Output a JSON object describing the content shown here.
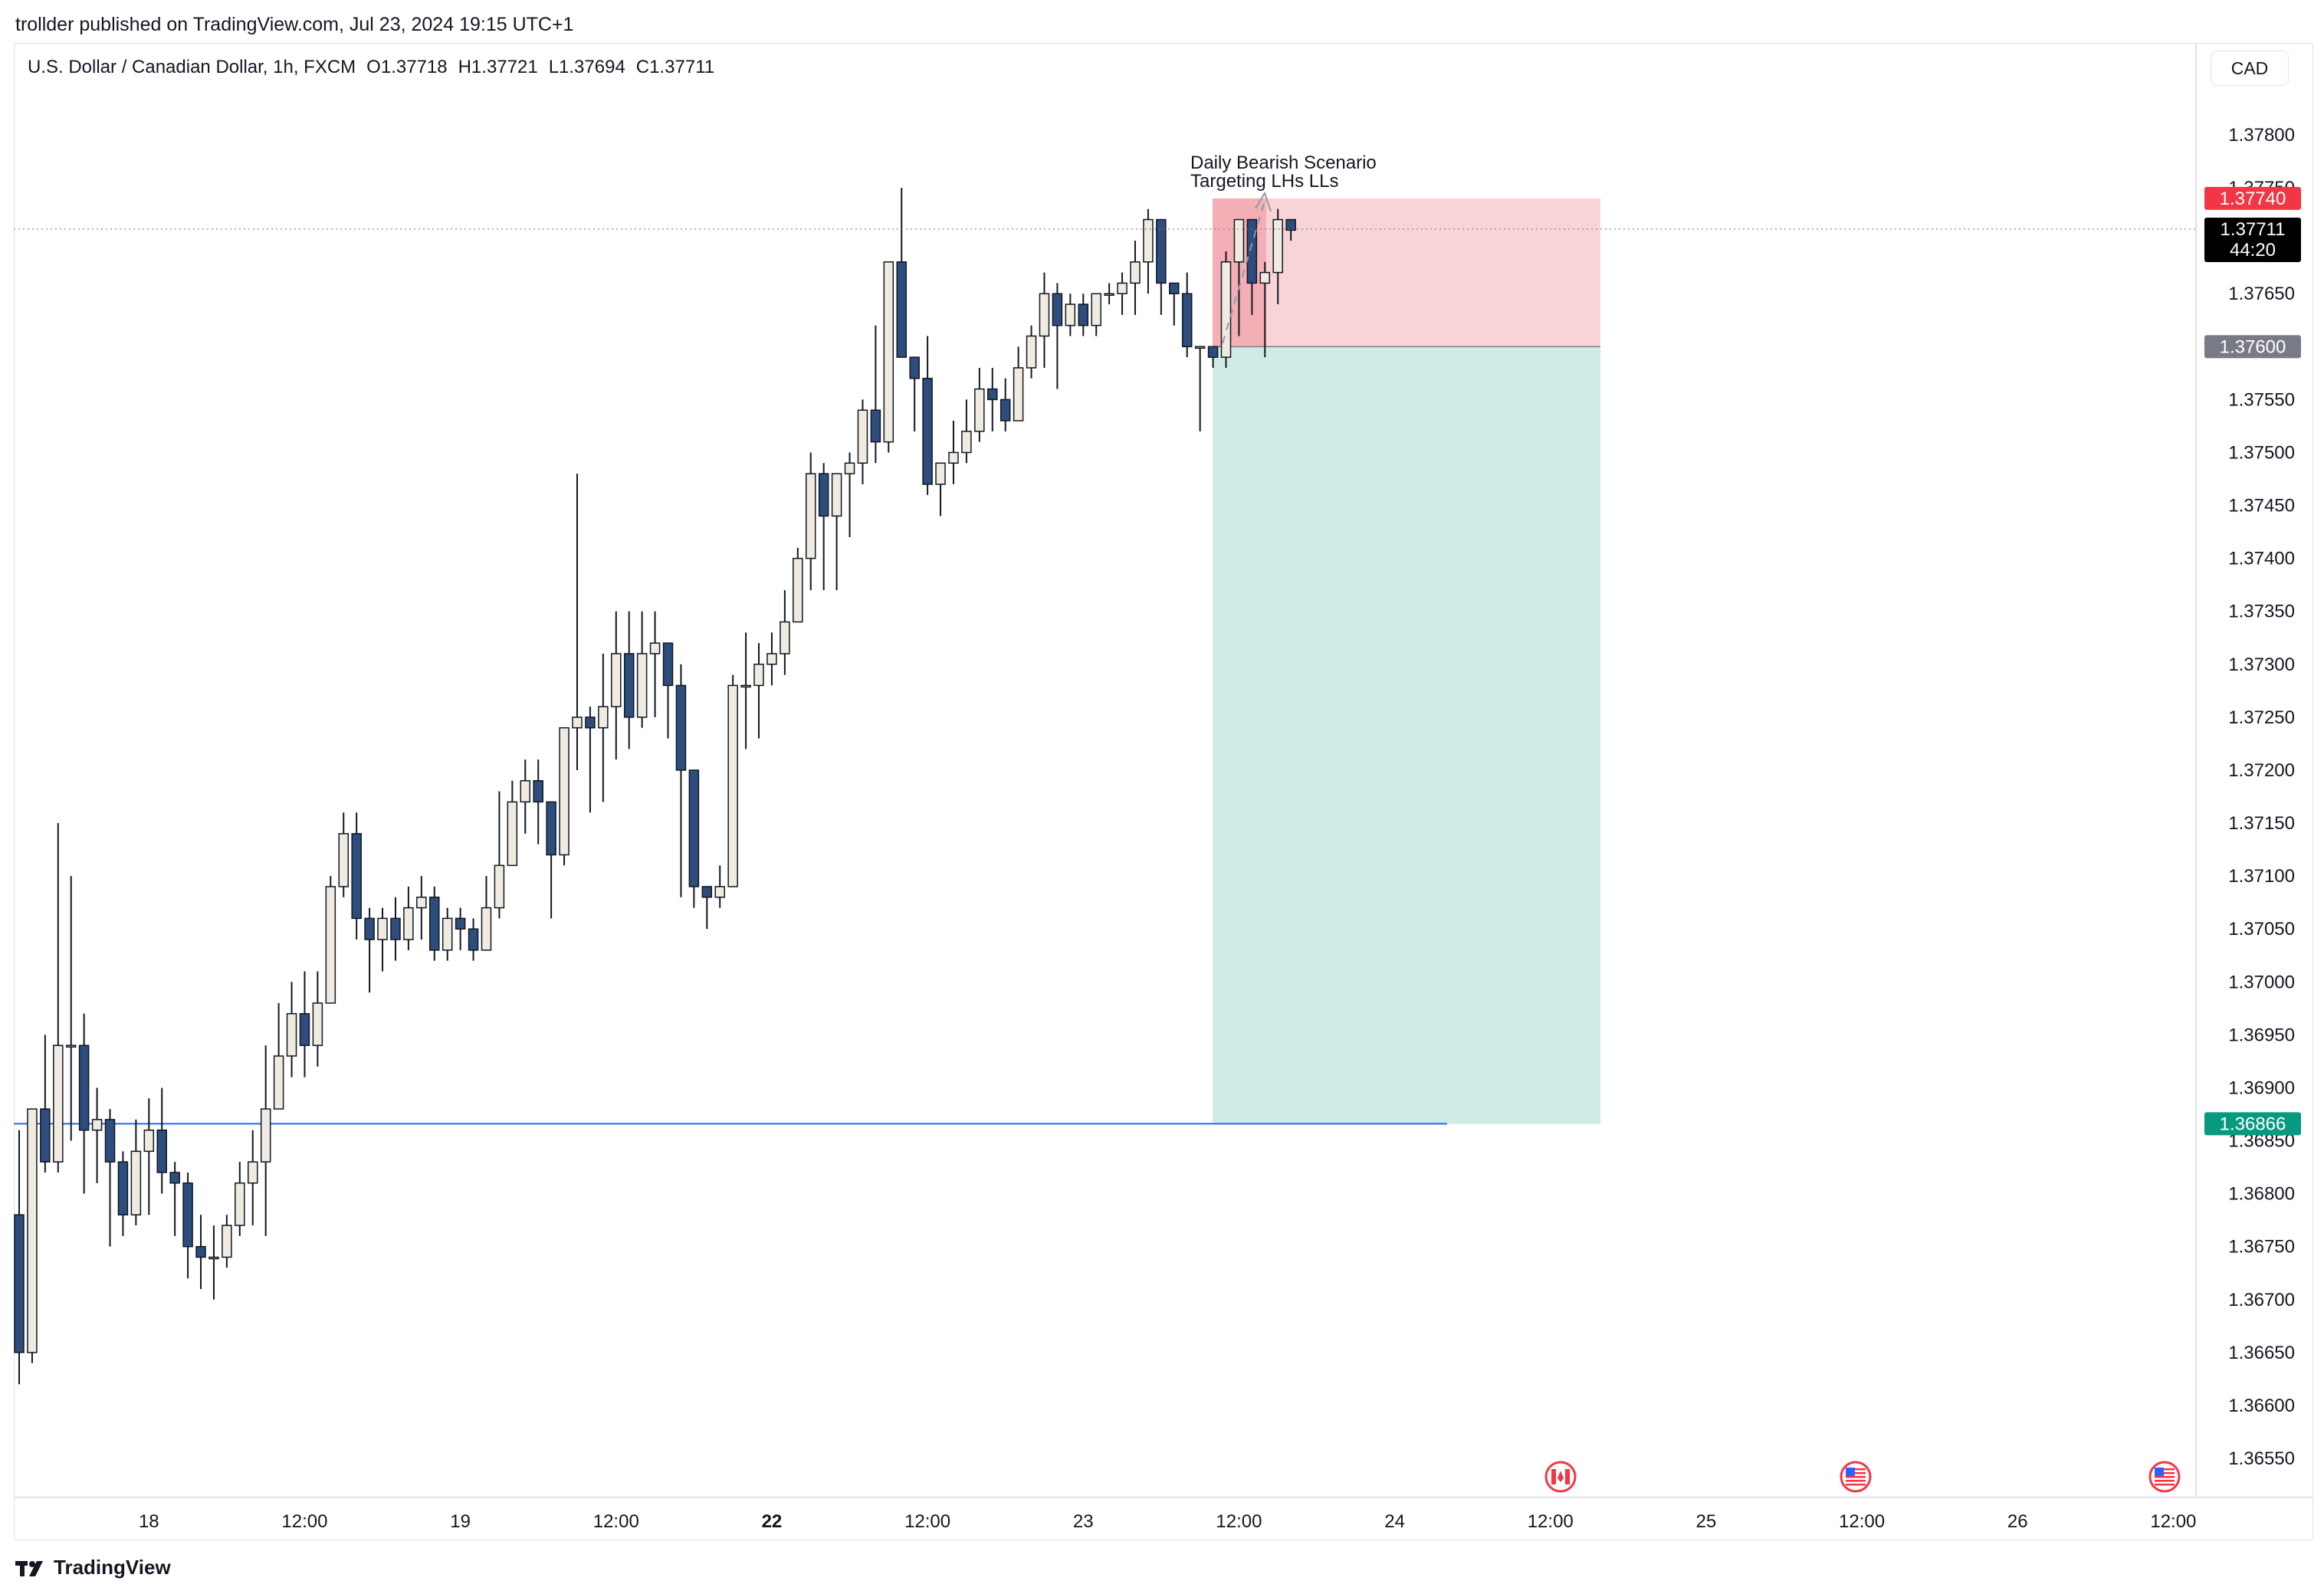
{
  "caption": "trollder published on TradingView.com, Jul 23, 2024 19:15 UTC+1",
  "header": {
    "symbol": "U.S. Dollar / Canadian Dollar, 1h, FXCM",
    "open": "O1.37718",
    "high": "H1.37721",
    "low": "L1.37694",
    "close": "C1.37711"
  },
  "currency_button": "CAD",
  "brand": "TradingView",
  "colors": {
    "up_body": "#efebe1",
    "down_body": "#2d4d7c",
    "wick": "#131722",
    "stop_zone": "#f7c5ca",
    "stop_zone_strong": "#f2a0a8",
    "target_zone": "#c6e8e0",
    "support_line": "#2962ff",
    "stop_tag": "#f23645",
    "entry_tag": "#787b86",
    "target_tag": "#089981",
    "last_tag": "#000000"
  },
  "chart_data": {
    "type": "candlestick",
    "instrument": "USD/CAD",
    "timeframe": "1h",
    "ylim": [
      1.3651,
      1.3781
    ],
    "y_ticks": [
      "1.37800",
      "1.37750",
      "1.37650",
      "1.37550",
      "1.37500",
      "1.37450",
      "1.37400",
      "1.37350",
      "1.37300",
      "1.37250",
      "1.37200",
      "1.37150",
      "1.37100",
      "1.37050",
      "1.37000",
      "1.36950",
      "1.36900",
      "1.36850",
      "1.36800",
      "1.36750",
      "1.36700",
      "1.36650",
      "1.36600",
      "1.36550"
    ],
    "x_ticks": [
      {
        "label": "18",
        "bar": 10,
        "bold": false
      },
      {
        "label": "12:00",
        "bar": 22,
        "bold": false
      },
      {
        "label": "19",
        "bar": 34,
        "bold": false
      },
      {
        "label": "12:00",
        "bar": 46,
        "bold": false
      },
      {
        "label": "22",
        "bar": 58,
        "bold": true
      },
      {
        "label": "12:00",
        "bar": 70,
        "bold": false
      },
      {
        "label": "23",
        "bar": 82,
        "bold": false
      },
      {
        "label": "12:00",
        "bar": 94,
        "bold": false
      },
      {
        "label": "24",
        "bar": 106,
        "bold": false
      },
      {
        "label": "12:00",
        "bar": 118,
        "bold": false
      },
      {
        "label": "25",
        "bar": 130,
        "bold": false
      },
      {
        "label": "12:00",
        "bar": 142,
        "bold": false
      },
      {
        "label": "26",
        "bar": 154,
        "bold": false
      },
      {
        "label": "12:00",
        "bar": 166,
        "bold": false
      }
    ],
    "candles": [
      [
        1.3678,
        1.3665,
        1.3662,
        1.3686
      ],
      [
        1.3665,
        1.3688,
        1.3664,
        1.3688
      ],
      [
        1.3688,
        1.3683,
        1.3682,
        1.3695
      ],
      [
        1.3683,
        1.3694,
        1.3682,
        1.3715
      ],
      [
        1.3694,
        1.3694,
        1.3685,
        1.371
      ],
      [
        1.3694,
        1.3686,
        1.368,
        1.3697
      ],
      [
        1.3686,
        1.3687,
        1.3681,
        1.369
      ],
      [
        1.3687,
        1.3683,
        1.3675,
        1.3688
      ],
      [
        1.3683,
        1.3678,
        1.3676,
        1.3684
      ],
      [
        1.3678,
        1.3684,
        1.3677,
        1.3687
      ],
      [
        1.3684,
        1.3686,
        1.3678,
        1.3689
      ],
      [
        1.3686,
        1.3682,
        1.368,
        1.369
      ],
      [
        1.3682,
        1.3681,
        1.3676,
        1.3683
      ],
      [
        1.3681,
        1.3675,
        1.3672,
        1.3682
      ],
      [
        1.3675,
        1.3674,
        1.3671,
        1.3678
      ],
      [
        1.3674,
        1.3674,
        1.367,
        1.3677
      ],
      [
        1.3674,
        1.3677,
        1.3673,
        1.3678
      ],
      [
        1.3677,
        1.3681,
        1.3676,
        1.3683
      ],
      [
        1.3681,
        1.3683,
        1.3677,
        1.3686
      ],
      [
        1.3683,
        1.3688,
        1.3676,
        1.3694
      ],
      [
        1.3688,
        1.3693,
        1.3688,
        1.3698
      ],
      [
        1.3693,
        1.3697,
        1.3691,
        1.37
      ],
      [
        1.3697,
        1.3694,
        1.3691,
        1.3701
      ],
      [
        1.3694,
        1.3698,
        1.3692,
        1.3701
      ],
      [
        1.3698,
        1.3709,
        1.3698,
        1.371
      ],
      [
        1.3709,
        1.3714,
        1.3708,
        1.3716
      ],
      [
        1.3714,
        1.3706,
        1.3704,
        1.3716
      ],
      [
        1.3706,
        1.3704,
        1.3699,
        1.3707
      ],
      [
        1.3704,
        1.3706,
        1.3701,
        1.3707
      ],
      [
        1.3706,
        1.3704,
        1.3702,
        1.3708
      ],
      [
        1.3704,
        1.3707,
        1.3703,
        1.3709
      ],
      [
        1.3707,
        1.3708,
        1.3704,
        1.371
      ],
      [
        1.3708,
        1.3703,
        1.3702,
        1.3709
      ],
      [
        1.3703,
        1.3706,
        1.3702,
        1.3707
      ],
      [
        1.3706,
        1.3705,
        1.3703,
        1.3707
      ],
      [
        1.3705,
        1.3703,
        1.3702,
        1.3706
      ],
      [
        1.3703,
        1.3707,
        1.3703,
        1.371
      ],
      [
        1.3707,
        1.3711,
        1.3706,
        1.3718
      ],
      [
        1.3711,
        1.3717,
        1.3711,
        1.3719
      ],
      [
        1.3717,
        1.3719,
        1.3714,
        1.3721
      ],
      [
        1.3719,
        1.3717,
        1.3713,
        1.3721
      ],
      [
        1.3717,
        1.3712,
        1.3706,
        1.3717
      ],
      [
        1.3712,
        1.3724,
        1.3711,
        1.3724
      ],
      [
        1.3724,
        1.3725,
        1.372,
        1.3748
      ],
      [
        1.3725,
        1.3724,
        1.3716,
        1.3726
      ],
      [
        1.3724,
        1.3726,
        1.3717,
        1.3731
      ],
      [
        1.3726,
        1.3731,
        1.3721,
        1.3735
      ],
      [
        1.3731,
        1.3725,
        1.3722,
        1.3735
      ],
      [
        1.3725,
        1.3731,
        1.3724,
        1.3735
      ],
      [
        1.3731,
        1.3732,
        1.3725,
        1.3735
      ],
      [
        1.3732,
        1.3728,
        1.3723,
        1.3732
      ],
      [
        1.3728,
        1.372,
        1.3708,
        1.373
      ],
      [
        1.372,
        1.3709,
        1.3707,
        1.372
      ],
      [
        1.3709,
        1.3708,
        1.3705,
        1.3709
      ],
      [
        1.3708,
        1.3709,
        1.3707,
        1.3711
      ],
      [
        1.3709,
        1.3728,
        1.3709,
        1.3729
      ],
      [
        1.3728,
        1.3728,
        1.3722,
        1.3733
      ],
      [
        1.3728,
        1.373,
        1.3723,
        1.3732
      ],
      [
        1.373,
        1.3731,
        1.3728,
        1.3733
      ],
      [
        1.3731,
        1.3734,
        1.3729,
        1.3737
      ],
      [
        1.3734,
        1.374,
        1.3734,
        1.3741
      ],
      [
        1.374,
        1.3748,
        1.3737,
        1.375
      ],
      [
        1.3748,
        1.3744,
        1.3737,
        1.3749
      ],
      [
        1.3744,
        1.3748,
        1.3737,
        1.3748
      ],
      [
        1.3748,
        1.3749,
        1.3742,
        1.375
      ],
      [
        1.3749,
        1.3754,
        1.3747,
        1.3755
      ],
      [
        1.3754,
        1.3751,
        1.3749,
        1.3762
      ],
      [
        1.3751,
        1.3768,
        1.375,
        1.3768
      ],
      [
        1.3768,
        1.3759,
        1.3759,
        1.3775
      ],
      [
        1.3759,
        1.3757,
        1.3752,
        1.3758
      ],
      [
        1.3757,
        1.3747,
        1.3746,
        1.3761
      ],
      [
        1.3747,
        1.3749,
        1.3744,
        1.3749
      ],
      [
        1.3749,
        1.375,
        1.3747,
        1.3753
      ],
      [
        1.375,
        1.3752,
        1.3749,
        1.3755
      ],
      [
        1.3752,
        1.3756,
        1.3751,
        1.3758
      ],
      [
        1.3756,
        1.3755,
        1.3752,
        1.3758
      ],
      [
        1.3755,
        1.3753,
        1.3752,
        1.3757
      ],
      [
        1.3753,
        1.3758,
        1.3753,
        1.376
      ],
      [
        1.3758,
        1.3761,
        1.3757,
        1.3762
      ],
      [
        1.3761,
        1.3765,
        1.3758,
        1.3767
      ],
      [
        1.3765,
        1.3762,
        1.3756,
        1.3766
      ],
      [
        1.3762,
        1.3764,
        1.3761,
        1.3765
      ],
      [
        1.3764,
        1.3762,
        1.3761,
        1.3765
      ],
      [
        1.3762,
        1.3765,
        1.3761,
        1.3765
      ],
      [
        1.3765,
        1.3765,
        1.3764,
        1.3766
      ],
      [
        1.3765,
        1.3766,
        1.3763,
        1.3767
      ],
      [
        1.3766,
        1.3768,
        1.3763,
        1.377
      ],
      [
        1.3768,
        1.3772,
        1.3765,
        1.3773
      ],
      [
        1.3772,
        1.3766,
        1.3763,
        1.3772
      ],
      [
        1.3766,
        1.3765,
        1.3762,
        1.3766
      ],
      [
        1.3765,
        1.376,
        1.3759,
        1.3767
      ],
      [
        1.376,
        1.376,
        1.3752,
        1.376
      ],
      [
        1.376,
        1.3759,
        1.3758,
        1.376
      ],
      [
        1.3759,
        1.3768,
        1.3758,
        1.3769
      ],
      [
        1.3768,
        1.3772,
        1.3761,
        1.3772
      ],
      [
        1.3772,
        1.3766,
        1.3763,
        1.3772
      ],
      [
        1.3766,
        1.3767,
        1.3759,
        1.3768
      ],
      [
        1.3767,
        1.3772,
        1.3764,
        1.3773
      ],
      [
        1.3772,
        1.3771,
        1.377,
        1.3772
      ]
    ],
    "last_price": "1.37711",
    "countdown": "44:20",
    "position": {
      "type": "short",
      "stop": "1.37740",
      "entry": "1.37600",
      "target": "1.36866"
    },
    "annotation": [
      "Daily Bearish Scenario",
      "Targeting LHs LLs"
    ],
    "support_level": 1.36866
  }
}
